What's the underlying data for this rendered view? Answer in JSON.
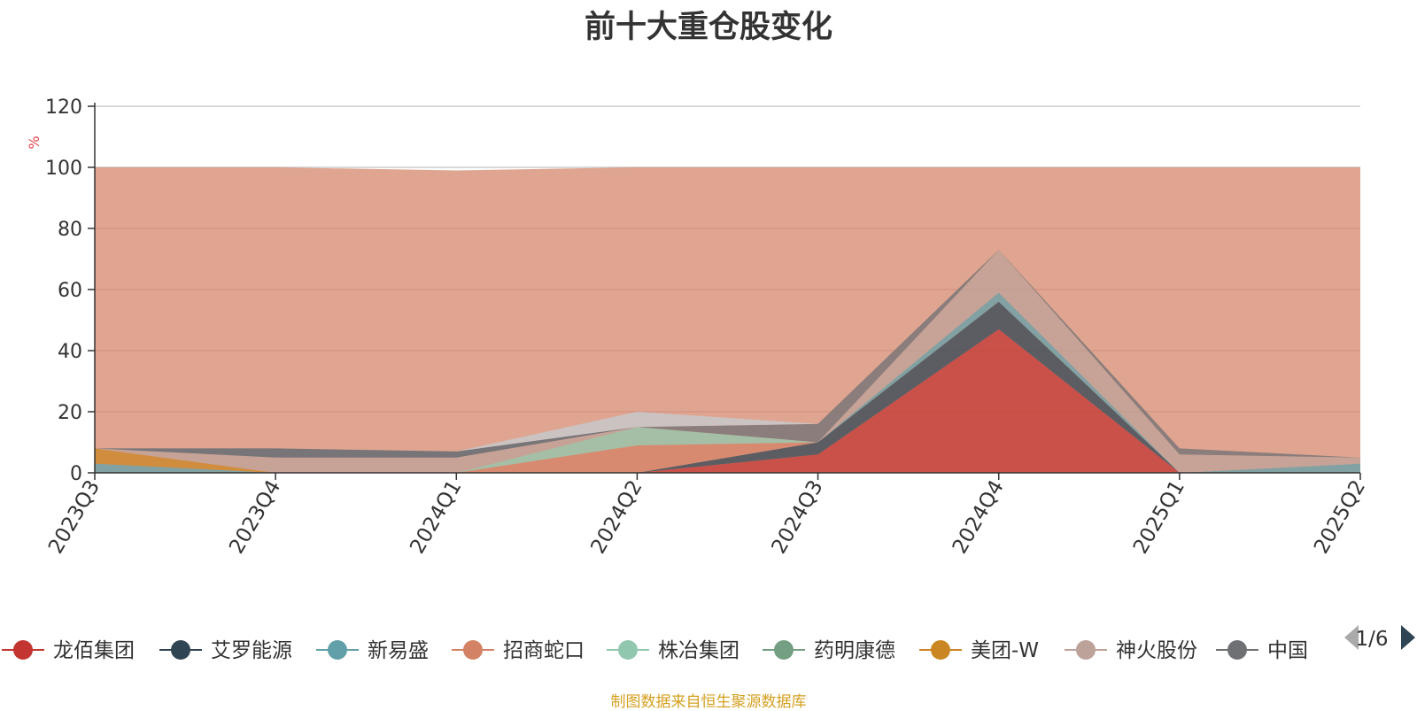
{
  "title": "前十大重仓股变化",
  "ylabel": "%",
  "source": "制图数据来自恒生聚源数据库",
  "legend_page": "1/6",
  "chart_data": {
    "type": "area",
    "stacked": true,
    "categories": [
      "2023Q3",
      "2023Q4",
      "2024Q1",
      "2024Q2",
      "2024Q3",
      "2024Q4",
      "2025Q1",
      "2025Q2"
    ],
    "ylim": [
      0,
      120
    ],
    "yticks": [
      0,
      20,
      40,
      60,
      80,
      100,
      120
    ],
    "grid": true,
    "legend_position": "bottom",
    "series": [
      {
        "name": "龙佰集团",
        "color": "#c23531",
        "values": [
          0,
          0,
          0,
          0,
          6,
          47,
          0,
          0
        ]
      },
      {
        "name": "艾罗能源",
        "color": "#2f4554",
        "values": [
          0,
          0,
          0,
          0,
          4,
          9,
          0,
          0
        ]
      },
      {
        "name": "新易盛",
        "color": "#61a0a8",
        "values": [
          3,
          0,
          0,
          0,
          0,
          3,
          0,
          3
        ]
      },
      {
        "name": "招商蛇口",
        "color": "#d48265",
        "values": [
          0,
          0,
          0,
          9,
          0,
          0,
          0,
          0
        ]
      },
      {
        "name": "株冶集团",
        "color": "#91c7ae",
        "values": [
          0,
          0,
          0,
          6,
          0,
          0,
          0,
          0
        ]
      },
      {
        "name": "药明康德",
        "color": "#749f83",
        "values": [
          0,
          0,
          0,
          0,
          0,
          0,
          0,
          0
        ]
      },
      {
        "name": "美团-W",
        "color": "#ca8622",
        "values": [
          5,
          0,
          0,
          0,
          0,
          0,
          0,
          0
        ]
      },
      {
        "name": "神火股份",
        "color": "#bda29a",
        "values": [
          0,
          5,
          5,
          0,
          0,
          14,
          6,
          2
        ]
      },
      {
        "name": "中国",
        "color": "#6e7074",
        "values": [
          0,
          0,
          0,
          0,
          6,
          0,
          2,
          0
        ]
      },
      {
        "name": "",
        "color": "#546570",
        "values": [
          0,
          3,
          2,
          0,
          0,
          0,
          0,
          0
        ]
      },
      {
        "name": "",
        "color": "#c4ccd3",
        "values": [
          0,
          0,
          0,
          5,
          0,
          0,
          0,
          0
        ]
      }
    ],
    "envelope": {
      "note_colors": "#f05b72",
      "color": "#d48265",
      "values": [
        100,
        100,
        99,
        100,
        100,
        100,
        100,
        100
      ]
    }
  }
}
